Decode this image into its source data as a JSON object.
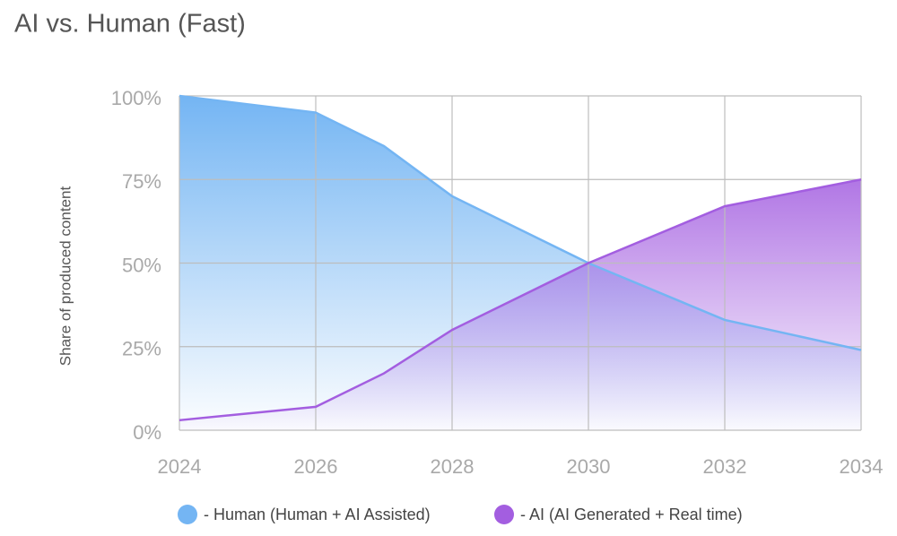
{
  "chart_data": {
    "type": "area",
    "title": "AI vs. Human (Fast)",
    "y_label": "Share of produced content",
    "x": [
      2024,
      2026,
      2027,
      2028,
      2030,
      2032,
      2034
    ],
    "series": [
      {
        "name": "- Human (Human + AI Assisted)",
        "color": "#74b5f3",
        "values": [
          100,
          95,
          85,
          70,
          50,
          33,
          24
        ]
      },
      {
        "name": "- AI (AI Generated + Real time)",
        "color": "#a35ee0",
        "values": [
          3,
          7,
          17,
          30,
          50,
          67,
          75
        ]
      }
    ],
    "xlim": [
      2024,
      2034
    ],
    "xticks": [
      2024,
      2026,
      2028,
      2030,
      2032,
      2034
    ],
    "ylim": [
      0,
      100
    ],
    "yticks": [
      {
        "value": 0,
        "label": "0%"
      },
      {
        "value": 25,
        "label": "25%"
      },
      {
        "value": 50,
        "label": "50%"
      },
      {
        "value": 75,
        "label": "75%"
      },
      {
        "value": 100,
        "label": "100%"
      }
    ],
    "grid": true,
    "legend": "bottom"
  }
}
